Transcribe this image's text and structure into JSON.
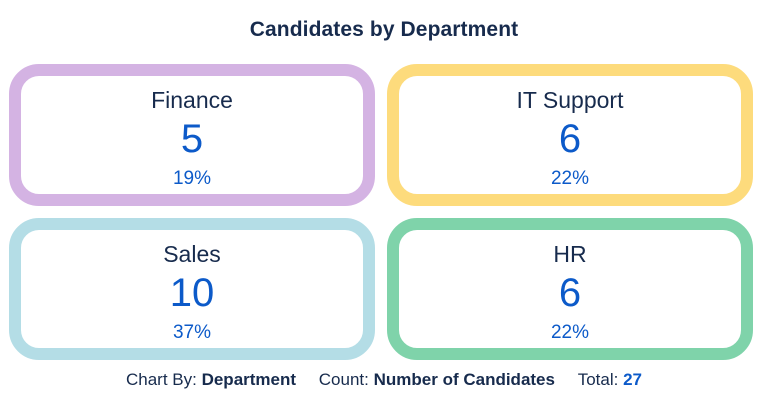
{
  "chart_data": {
    "type": "table",
    "title": "Candidates by Department",
    "categories": [
      "Finance",
      "IT Support",
      "Sales",
      "HR"
    ],
    "values": [
      5,
      6,
      10,
      6
    ],
    "percents": [
      "19%",
      "22%",
      "37%",
      "22%"
    ],
    "colors": [
      "#d4b3e3",
      "#fddb7c",
      "#b4dde6",
      "#7fd3aa"
    ],
    "total": 27
  },
  "footer": {
    "chart_by_label": "Chart By:",
    "chart_by_value": "Department",
    "count_label": "Count:",
    "count_value": "Number of Candidates",
    "total_label": "Total:",
    "total_value": "27"
  },
  "accent_color": "#0c5ac9"
}
